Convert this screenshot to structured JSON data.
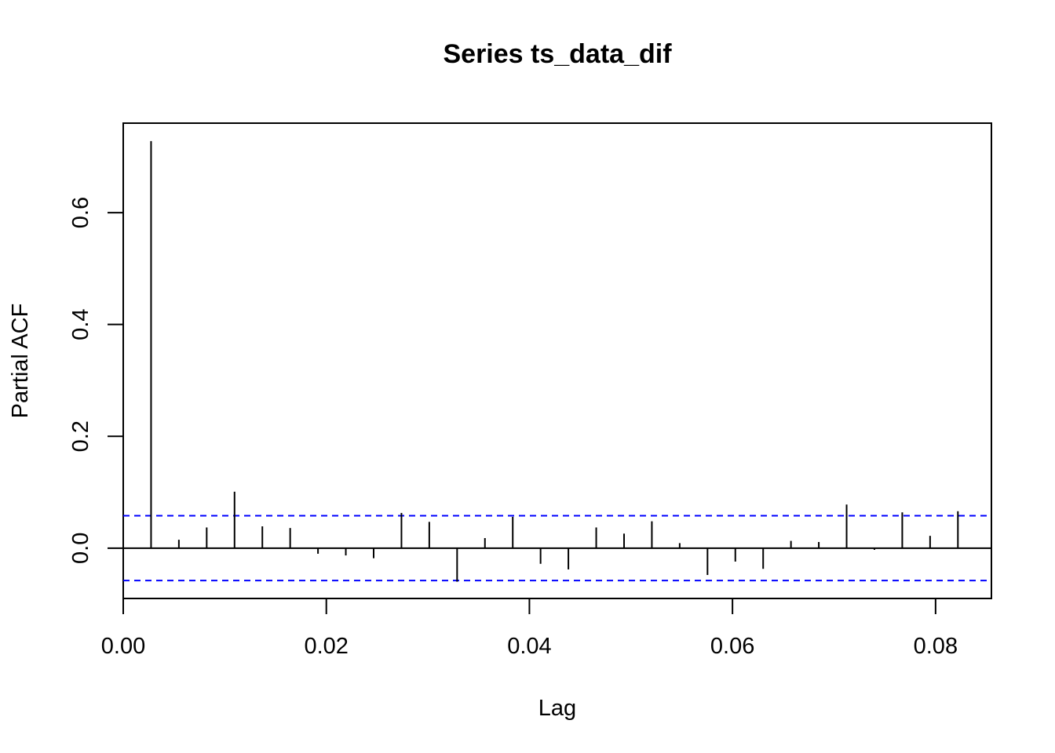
{
  "chart_data": {
    "type": "bar",
    "title": "Series  ts_data_dif",
    "xlabel": "Lag",
    "ylabel": "Partial ACF",
    "xlim": [
      0.0,
      0.0855
    ],
    "ylim": [
      -0.09,
      0.76
    ],
    "x_ticks": [
      0.0,
      0.02,
      0.04,
      0.06,
      0.08
    ],
    "x_tick_labels": [
      "0.00",
      "0.02",
      "0.04",
      "0.06",
      "0.08"
    ],
    "y_ticks": [
      0.0,
      0.2,
      0.4,
      0.6
    ],
    "y_tick_labels": [
      "0.0",
      "0.2",
      "0.4",
      "0.6"
    ],
    "confidence_bound": 0.058,
    "colors": {
      "spikes": "#000000",
      "bounds": "#0000ff"
    },
    "points": [
      {
        "lag": 0.00274,
        "value": 0.728
      },
      {
        "lag": 0.00548,
        "value": 0.015
      },
      {
        "lag": 0.00822,
        "value": 0.037
      },
      {
        "lag": 0.01096,
        "value": 0.101
      },
      {
        "lag": 0.0137,
        "value": 0.039
      },
      {
        "lag": 0.01644,
        "value": 0.036
      },
      {
        "lag": 0.01918,
        "value": -0.01
      },
      {
        "lag": 0.02192,
        "value": -0.013
      },
      {
        "lag": 0.02466,
        "value": -0.018
      },
      {
        "lag": 0.0274,
        "value": 0.063
      },
      {
        "lag": 0.03014,
        "value": 0.047
      },
      {
        "lag": 0.03288,
        "value": -0.06
      },
      {
        "lag": 0.03562,
        "value": 0.018
      },
      {
        "lag": 0.03836,
        "value": 0.056
      },
      {
        "lag": 0.0411,
        "value": -0.028
      },
      {
        "lag": 0.04384,
        "value": -0.038
      },
      {
        "lag": 0.04658,
        "value": 0.037
      },
      {
        "lag": 0.04932,
        "value": 0.026
      },
      {
        "lag": 0.05206,
        "value": 0.048
      },
      {
        "lag": 0.0548,
        "value": 0.009
      },
      {
        "lag": 0.05754,
        "value": -0.048
      },
      {
        "lag": 0.06028,
        "value": -0.024
      },
      {
        "lag": 0.06302,
        "value": -0.037
      },
      {
        "lag": 0.06576,
        "value": 0.013
      },
      {
        "lag": 0.0685,
        "value": 0.011
      },
      {
        "lag": 0.07124,
        "value": 0.078
      },
      {
        "lag": 0.07398,
        "value": -0.003
      },
      {
        "lag": 0.07672,
        "value": 0.064
      },
      {
        "lag": 0.07946,
        "value": 0.022
      },
      {
        "lag": 0.0822,
        "value": 0.066
      }
    ]
  }
}
